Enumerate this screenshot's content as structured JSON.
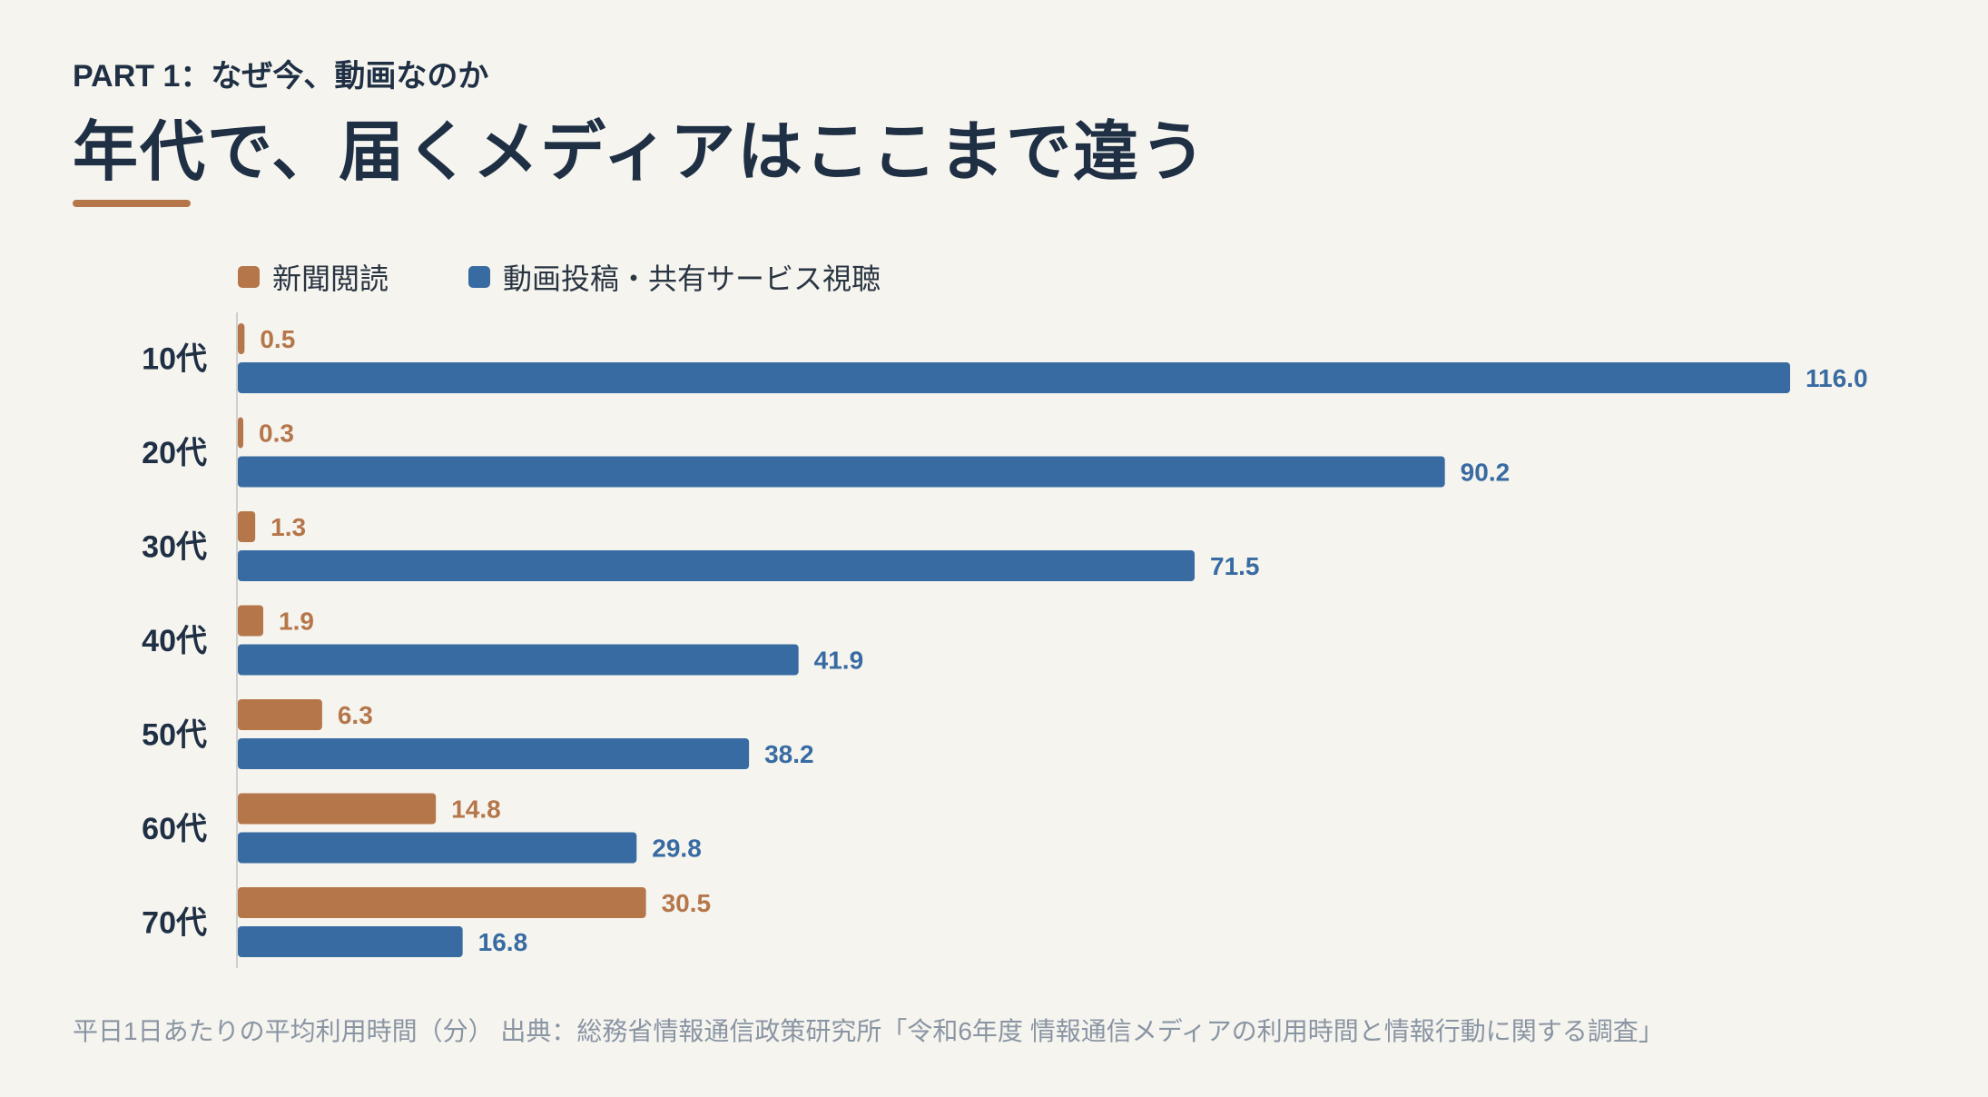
{
  "header": {
    "kicker": "PART 1：なぜ今、動画なのか",
    "title": "年代で、届くメディアはここまで違う"
  },
  "colors": {
    "newspaper": "#b5764a",
    "video": "#386ba2",
    "axis": "#cfcfcf",
    "category_text": "#1f2f44"
  },
  "chart_data": {
    "type": "bar",
    "orientation": "horizontal",
    "categories": [
      "10代",
      "20代",
      "30代",
      "40代",
      "50代",
      "60代",
      "70代"
    ],
    "series": [
      {
        "name": "新聞閲読",
        "color": "#b5764a",
        "values": [
          0.5,
          0.3,
          1.3,
          1.9,
          6.3,
          14.8,
          30.5
        ]
      },
      {
        "name": "動画投稿・共有サービス視聴",
        "color": "#386ba2",
        "values": [
          116.0,
          90.2,
          71.5,
          41.9,
          38.2,
          29.8,
          16.8
        ]
      }
    ],
    "xlim": [
      0,
      116
    ],
    "grid": false,
    "legend": "top-left",
    "data_labels": true
  },
  "footnote": "平日1日あたりの平均利用時間（分） 出典：総務省情報通信政策研究所「令和6年度 情報通信メディアの利用時間と情報行動に関する調査」"
}
